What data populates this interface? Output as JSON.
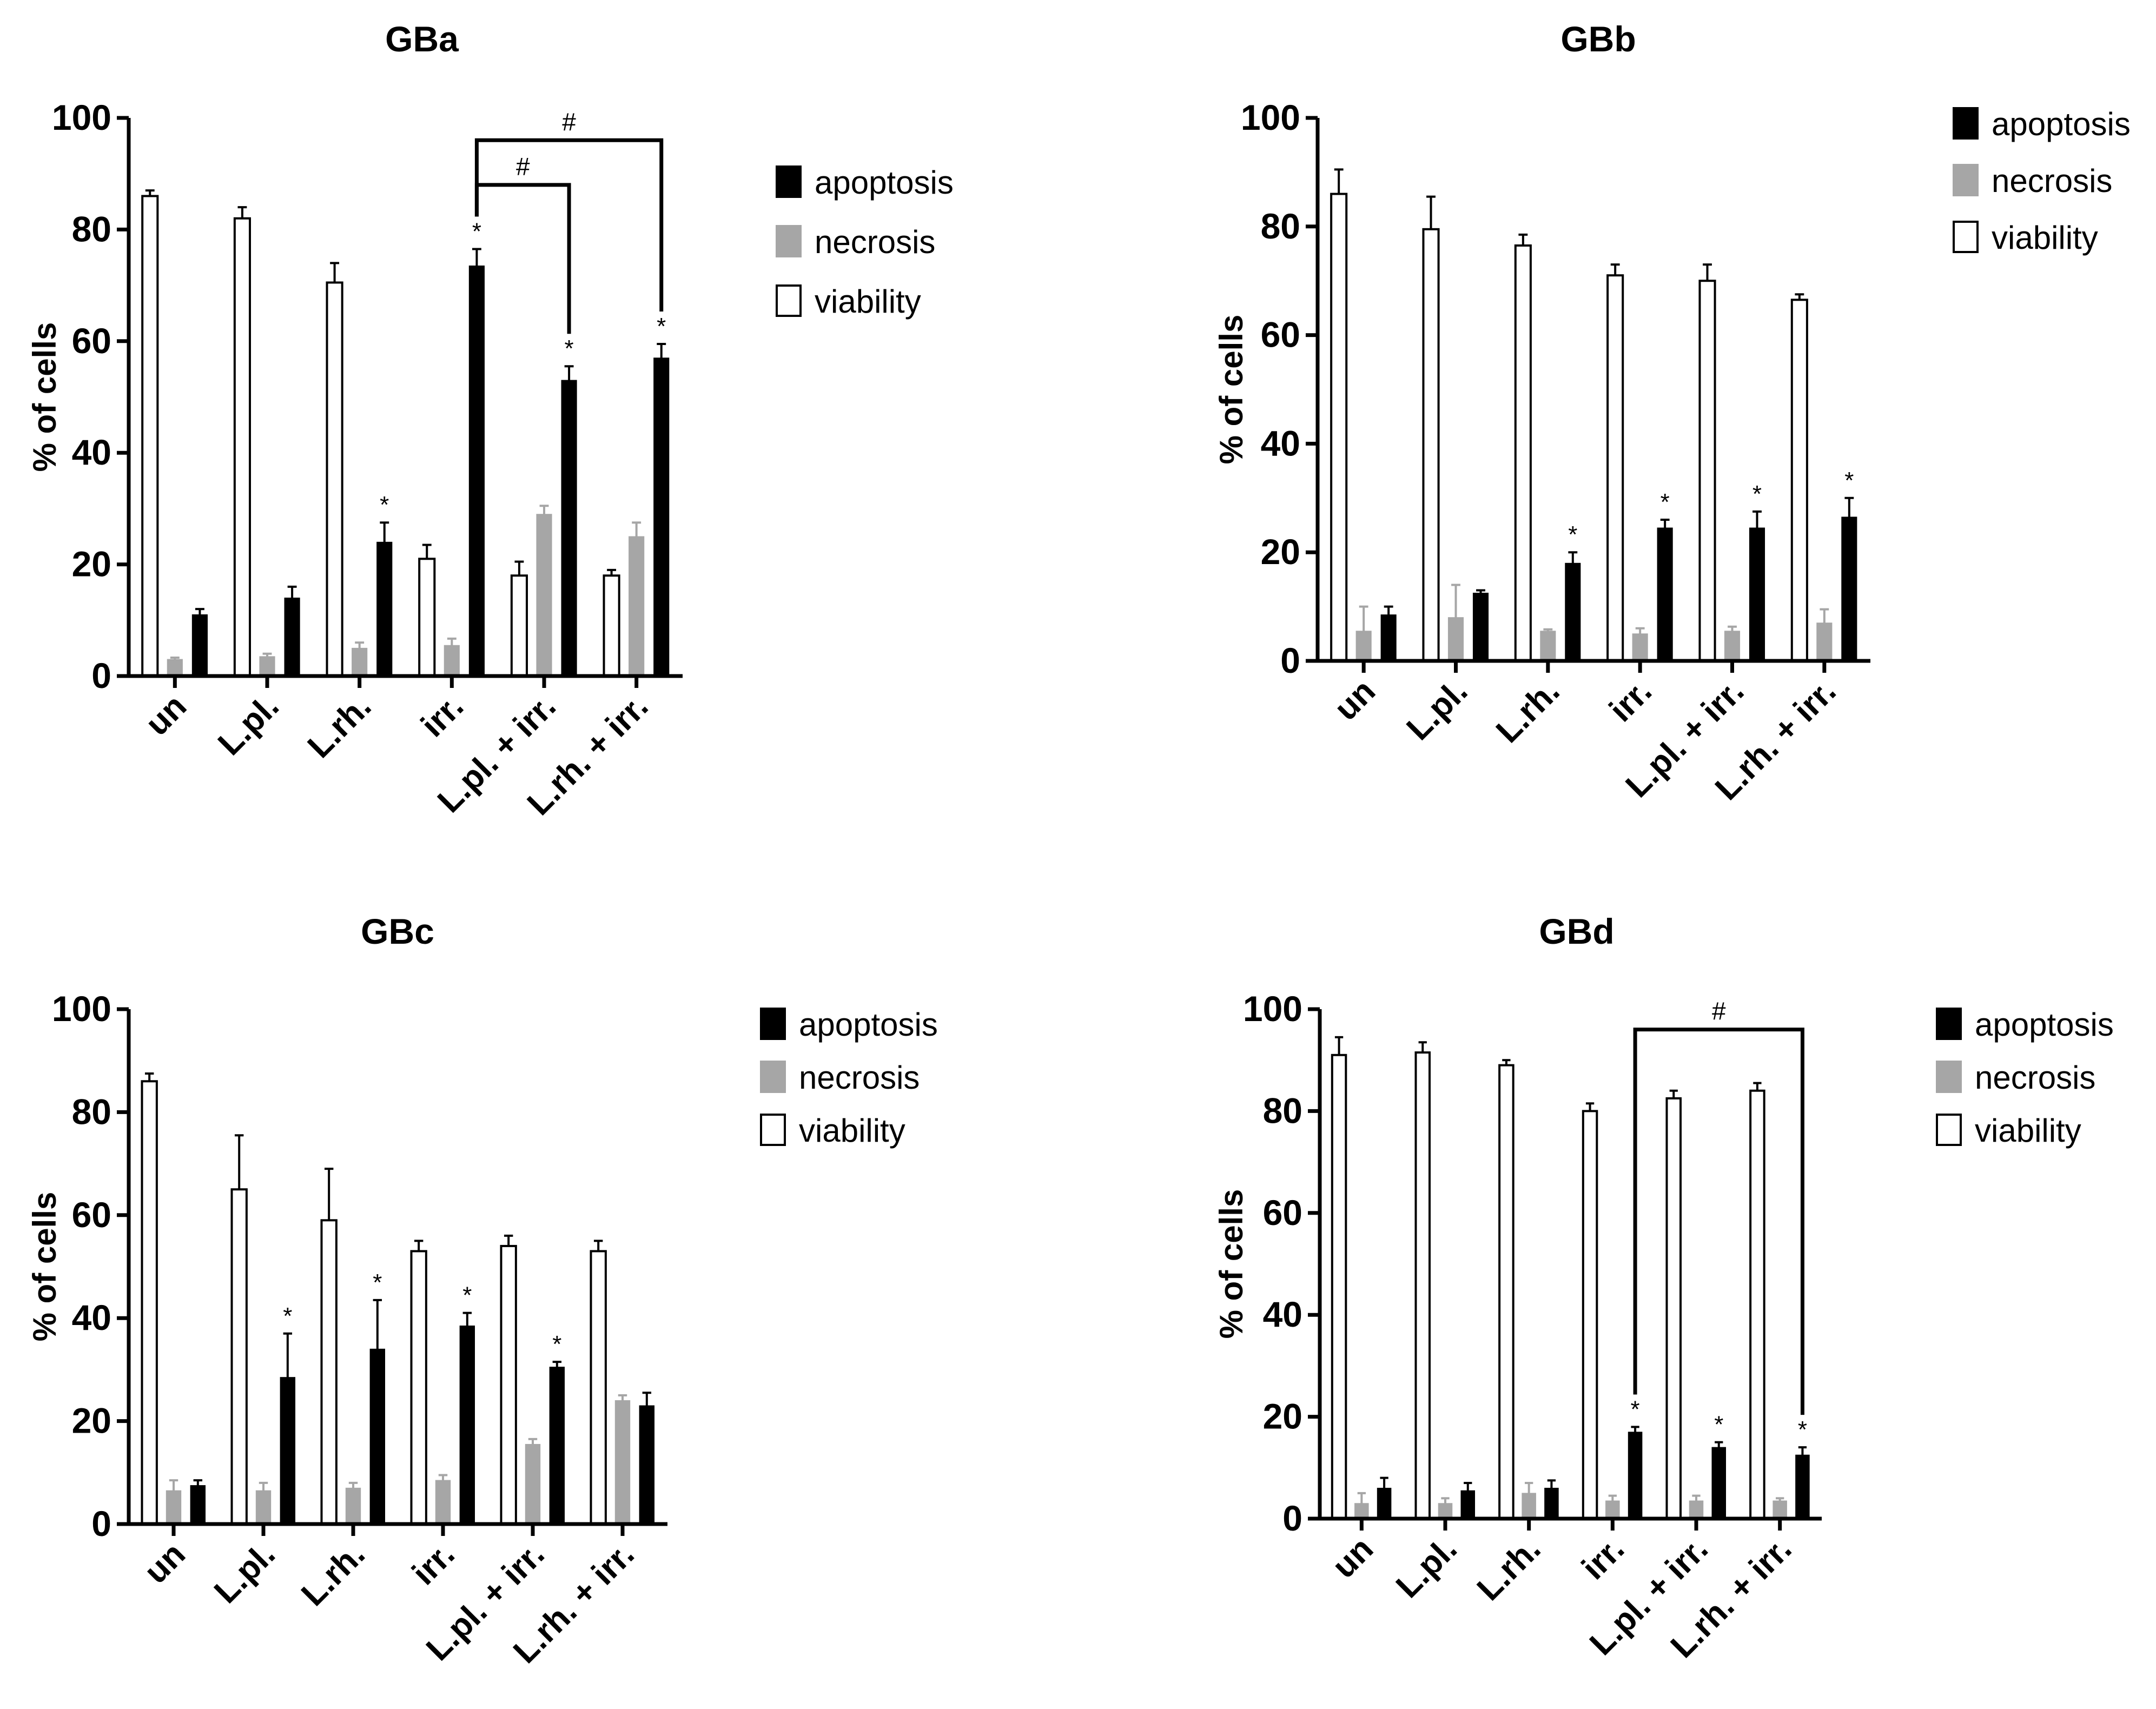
{
  "figure_type": "grouped bar charts with error bars",
  "chart_data": [
    {
      "type": "bar",
      "title": "GBa",
      "ylabel": "% of cells",
      "xlabel": "",
      "ylim": [
        0,
        100
      ],
      "yticks": [
        0,
        20,
        40,
        60,
        80,
        100
      ],
      "categories": [
        "un",
        "L.pl.",
        "L.rh.",
        "irr.",
        "L.pl. + irr.",
        "L.rh. + irr."
      ],
      "series": [
        {
          "name": "viability",
          "color": "#ffffff",
          "values": [
            86,
            82,
            70.5,
            21,
            18,
            18
          ],
          "errors": [
            1,
            2,
            3.5,
            2.5,
            2.5,
            1
          ]
        },
        {
          "name": "necrosis",
          "color": "#a6a6a6",
          "values": [
            3,
            3.5,
            5,
            5.5,
            29,
            25
          ],
          "errors": [
            0.3,
            0.5,
            1,
            1.2,
            1.5,
            2.5
          ]
        },
        {
          "name": "apoptosis",
          "color": "#000000",
          "values": [
            11,
            14,
            24,
            73.5,
            53,
            57
          ],
          "errors": [
            1,
            2,
            3.5,
            3,
            2.5,
            2.5
          ]
        }
      ],
      "legend_order": [
        "apoptosis",
        "necrosis",
        "viability"
      ],
      "significance_markers": {
        "symbol": "*",
        "series": "apoptosis",
        "categories": [
          "L.rh.",
          "irr.",
          "L.pl. + irr.",
          "L.rh. + irr."
        ]
      },
      "brackets": [
        {
          "from": "irr.",
          "to": "L.pl. + irr.",
          "label": "#",
          "level": 88
        },
        {
          "from": "irr.",
          "to": "L.rh. + irr.",
          "label": "#",
          "level": 96
        }
      ]
    },
    {
      "type": "bar",
      "title": "GBb",
      "ylabel": "% of cells",
      "xlabel": "",
      "ylim": [
        0,
        100
      ],
      "yticks": [
        0,
        20,
        40,
        60,
        80,
        100
      ],
      "categories": [
        "un",
        "L.pl.",
        "L.rh.",
        "irr.",
        "L.pl. + irr.",
        "L.rh. + irr."
      ],
      "series": [
        {
          "name": "viability",
          "color": "#ffffff",
          "values": [
            86,
            79.5,
            76.5,
            71,
            70,
            66.5
          ],
          "errors": [
            4.5,
            6,
            2,
            2,
            3,
            1
          ]
        },
        {
          "name": "necrosis",
          "color": "#a6a6a6",
          "values": [
            5.5,
            8,
            5.5,
            5,
            5.5,
            7
          ],
          "errors": [
            4.5,
            6,
            0.3,
            1,
            0.8,
            2.5
          ]
        },
        {
          "name": "apoptosis",
          "color": "#000000",
          "values": [
            8.5,
            12.5,
            18,
            24.5,
            24.5,
            26.5
          ],
          "errors": [
            1.5,
            0.5,
            2,
            1.5,
            3,
            3.5
          ]
        }
      ],
      "legend_order": [
        "apoptosis",
        "necrosis",
        "viability"
      ],
      "significance_markers": {
        "symbol": "*",
        "series": "apoptosis",
        "categories": [
          "L.rh.",
          "irr.",
          "L.pl. + irr.",
          "L.rh. + irr."
        ]
      },
      "brackets": []
    },
    {
      "type": "bar",
      "title": "GBc",
      "ylabel": "% of cells",
      "xlabel": "",
      "ylim": [
        0,
        100
      ],
      "yticks": [
        0,
        20,
        40,
        60,
        80,
        100
      ],
      "categories": [
        "un",
        "L.pl.",
        "L.rh.",
        "irr.",
        "L.pl. + irr.",
        "L.rh. + irr."
      ],
      "series": [
        {
          "name": "viability",
          "color": "#ffffff",
          "values": [
            86,
            65,
            59,
            53,
            54,
            53
          ],
          "errors": [
            1.5,
            10.5,
            10,
            2,
            2,
            2
          ]
        },
        {
          "name": "necrosis",
          "color": "#a6a6a6",
          "values": [
            6.5,
            6.5,
            7,
            8.5,
            15.5,
            24
          ],
          "errors": [
            2,
            1.5,
            1,
            1,
            1,
            1
          ]
        },
        {
          "name": "apoptosis",
          "color": "#000000",
          "values": [
            7.5,
            28.5,
            34,
            38.5,
            30.5,
            23
          ],
          "errors": [
            1,
            8.5,
            9.5,
            2.5,
            1,
            2.5
          ]
        }
      ],
      "legend_order": [
        "apoptosis",
        "necrosis",
        "viability"
      ],
      "significance_markers": {
        "symbol": "*",
        "series": "apoptosis",
        "categories": [
          "L.pl.",
          "L.rh.",
          "irr.",
          "L.pl. + irr."
        ]
      },
      "brackets": []
    },
    {
      "type": "bar",
      "title": "GBd",
      "ylabel": "% of cells",
      "xlabel": "",
      "ylim": [
        0,
        100
      ],
      "yticks": [
        0,
        20,
        40,
        60,
        80,
        100
      ],
      "categories": [
        "un",
        "L.pl.",
        "L.rh.",
        "irr.",
        "L.pl. + irr.",
        "L.rh. + irr."
      ],
      "series": [
        {
          "name": "viability",
          "color": "#ffffff",
          "values": [
            91,
            91.5,
            89,
            80,
            82.5,
            84
          ],
          "errors": [
            3.5,
            2,
            1,
            1.5,
            1.5,
            1.5
          ]
        },
        {
          "name": "necrosis",
          "color": "#a6a6a6",
          "values": [
            3,
            3,
            5,
            3.5,
            3.5,
            3.5
          ],
          "errors": [
            2,
            1,
            2,
            1,
            1,
            0.5
          ]
        },
        {
          "name": "apoptosis",
          "color": "#000000",
          "values": [
            6,
            5.5,
            6,
            17,
            14,
            12.5
          ],
          "errors": [
            2,
            1.5,
            1.5,
            1,
            1,
            1.5
          ]
        }
      ],
      "legend_order": [
        "apoptosis",
        "necrosis",
        "viability"
      ],
      "significance_markers": {
        "symbol": "*",
        "series": "apoptosis",
        "categories": [
          "irr.",
          "L.pl. + irr.",
          "L.rh. + irr."
        ]
      },
      "brackets": [
        {
          "from": "irr.",
          "to": "L.rh. + irr.",
          "label": "#",
          "level": 96
        }
      ]
    }
  ]
}
